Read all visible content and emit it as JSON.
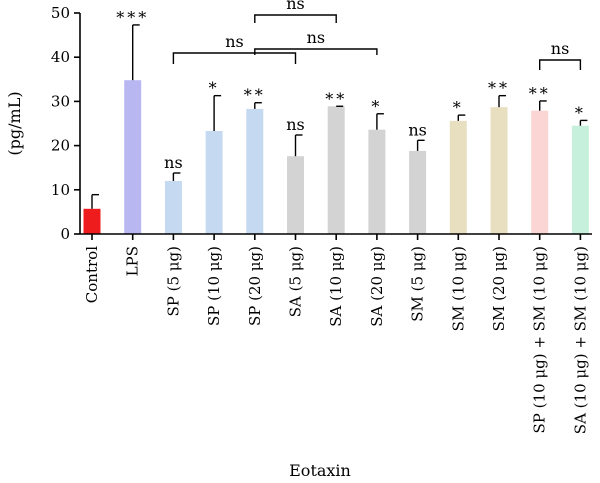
{
  "chart_data": {
    "type": "bar",
    "xlabel": "Eotaxin",
    "ylabel": "(pg/mL)",
    "ylim": [
      0,
      50
    ],
    "yticks": [
      "0",
      "10",
      "20",
      "30",
      "40",
      "50"
    ],
    "grid": false,
    "categories": [
      "Control",
      "LPS",
      "SP (5 μg)",
      "SP (10 μg)",
      "SP (20 μg)",
      "SA (5 μg)",
      "SA (10 μg)",
      "SA (20 μg)",
      "SM (5 μg)",
      "SM (10 μg)",
      "SM (20 μg)",
      "SP (10 μg) + SM (10 μg)",
      "SA (10 μg) + SM (10 μg)"
    ],
    "values": [
      5.7,
      34.8,
      12.0,
      23.3,
      28.3,
      17.6,
      28.9,
      23.6,
      18.8,
      25.6,
      28.7,
      27.9,
      24.5
    ],
    "errors": [
      3.2,
      12.5,
      1.8,
      8.0,
      1.4,
      4.8,
      0.0,
      3.6,
      2.4,
      1.3,
      2.6,
      2.2,
      1.2
    ],
    "colors": [
      "#ee1c1c",
      "#b9b7f2",
      "#c5d9f1",
      "#c5d9f1",
      "#c5d9f1",
      "#d3d3d3",
      "#d3d3d3",
      "#d3d3d3",
      "#d3d3d3",
      "#e8dfc0",
      "#e8dfc0",
      "#fbd4d4",
      "#c7f0dc"
    ],
    "significance": [
      "",
      "***",
      "ns",
      "*",
      "**",
      "ns",
      "**",
      "*",
      "ns",
      "*",
      "**",
      "**",
      "*"
    ],
    "brackets": [
      {
        "from": 4,
        "to": 6,
        "label": "ns"
      },
      {
        "from": 2,
        "to": 5,
        "label": "ns"
      },
      {
        "from": 4,
        "to": 7,
        "label": "ns"
      },
      {
        "from": 11,
        "to": 12,
        "label": "ns"
      }
    ]
  }
}
